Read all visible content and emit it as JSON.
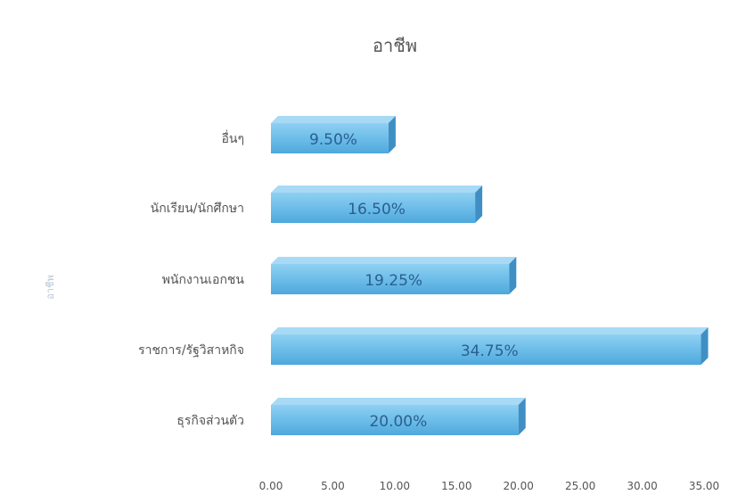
{
  "chart_data": {
    "type": "bar",
    "orientation": "horizontal",
    "title": "อาชีพ",
    "ylabel": "อาชีพ",
    "xlabel": "",
    "categories": [
      "อื่นๆ",
      "นักเรียน/นักศึกษา",
      "พนักงานเอกชน",
      "ราชการ/รัฐวิสาหกิจ",
      "ธุรกิจส่วนตัว"
    ],
    "values": [
      9.5,
      16.5,
      19.25,
      34.75,
      20.0
    ],
    "data_labels": [
      "9.50%",
      "16.50%",
      "19.25%",
      "34.75%",
      "20.00%"
    ],
    "xlim": [
      0,
      35
    ],
    "x_ticks": [
      "0.00",
      "5.00",
      "10.00",
      "15.00",
      "20.00",
      "25.00",
      "30.00",
      "35.00"
    ],
    "grid": false,
    "legend": "none",
    "colors": {
      "bar_face": "#74c2ec",
      "bar_side": "#3f8fc4",
      "bar_top": "#a8daf5",
      "text": "#555555"
    }
  }
}
